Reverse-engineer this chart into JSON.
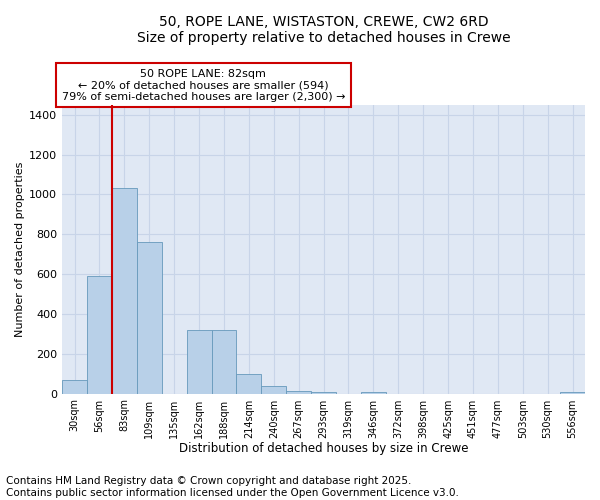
{
  "title1": "50, ROPE LANE, WISTASTON, CREWE, CW2 6RD",
  "title2": "Size of property relative to detached houses in Crewe",
  "xlabel": "Distribution of detached houses by size in Crewe",
  "ylabel": "Number of detached properties",
  "categories": [
    "30sqm",
    "56sqm",
    "83sqm",
    "109sqm",
    "135sqm",
    "162sqm",
    "188sqm",
    "214sqm",
    "240sqm",
    "267sqm",
    "293sqm",
    "319sqm",
    "346sqm",
    "372sqm",
    "398sqm",
    "425sqm",
    "451sqm",
    "477sqm",
    "503sqm",
    "530sqm",
    "556sqm"
  ],
  "values": [
    70,
    590,
    1030,
    760,
    0,
    320,
    320,
    100,
    40,
    15,
    10,
    0,
    10,
    0,
    0,
    0,
    0,
    0,
    0,
    0,
    10
  ],
  "bar_color": "#b8d0e8",
  "bar_edge_color": "#6699bb",
  "vline_color": "#cc0000",
  "annotation_text": "50 ROPE LANE: 82sqm\n← 20% of detached houses are smaller (594)\n79% of semi-detached houses are larger (2,300) →",
  "annotation_box_color": "#ffffff",
  "annotation_box_edge": "#cc0000",
  "ylim": [
    0,
    1450
  ],
  "yticks": [
    0,
    200,
    400,
    600,
    800,
    1000,
    1200,
    1400
  ],
  "grid_color": "#c8d4e8",
  "bg_color": "#e0e8f4",
  "footer1": "Contains HM Land Registry data © Crown copyright and database right 2025.",
  "footer2": "Contains public sector information licensed under the Open Government Licence v3.0.",
  "title_fontsize": 10,
  "annotation_fontsize": 8,
  "footer_fontsize": 7.5
}
